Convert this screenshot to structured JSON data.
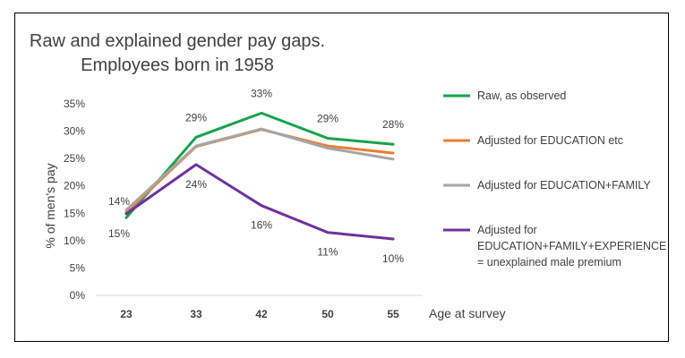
{
  "chart_data": {
    "type": "line",
    "title": [
      "Raw and explained gender pay gaps.",
      "Employees born in 1958"
    ],
    "xlabel": "Age at survey",
    "ylabel": "% of men's pay",
    "categories": [
      "23",
      "33",
      "42",
      "50",
      "55"
    ],
    "ylim": [
      0,
      35
    ],
    "yticks": [
      "0%",
      "5%",
      "10%",
      "15%",
      "20%",
      "25%",
      "30%",
      "35%"
    ],
    "grid": false,
    "legend_position": "right",
    "series": [
      {
        "name": "Raw, as observed",
        "color": "#17a34a",
        "values": [
          14.2,
          28.9,
          33.3,
          28.7,
          27.6
        ],
        "data_labels": [
          "14%",
          "29%",
          "33%",
          "29%",
          "28%"
        ]
      },
      {
        "name": "Adjusted for EDUCATION etc",
        "color": "#ed7d31",
        "values": [
          15.2,
          27.2,
          30.3,
          27.3,
          26.0
        ],
        "data_labels": []
      },
      {
        "name": "Adjusted for EDUCATION+FAMILY",
        "color": "#a5a5a5",
        "values": [
          15.6,
          27.3,
          30.4,
          26.9,
          24.9
        ],
        "data_labels": []
      },
      {
        "name": [
          "Adjusted for",
          "EDUCATION+FAMILY+EXPERIENCE",
          "= unexplained male premium"
        ],
        "color": "#7030a0",
        "values": [
          14.9,
          23.9,
          16.4,
          11.5,
          10.3
        ],
        "data_labels": [
          "15%",
          "24%",
          "16%",
          "11%",
          "10%"
        ]
      }
    ]
  }
}
